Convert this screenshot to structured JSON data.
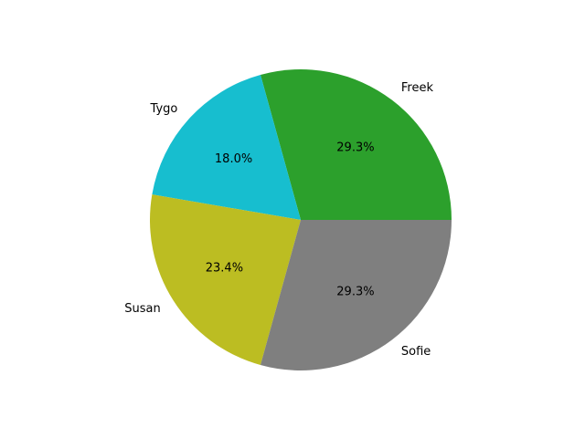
{
  "chart_data": {
    "type": "pie",
    "title": "",
    "labels": [
      "Freek",
      "Tygo",
      "Susan",
      "Sofie"
    ],
    "percent_labels": [
      "29.3%",
      "18.0%",
      "23.4%",
      "29.3%"
    ],
    "values": [
      29.3,
      18.0,
      23.4,
      29.3
    ],
    "colors": [
      "#2ca02c",
      "#17becf",
      "#bcbd22",
      "#7f7f7f"
    ],
    "start_angle_deg": 0,
    "direction": "counterclockwise",
    "legend": "none"
  }
}
